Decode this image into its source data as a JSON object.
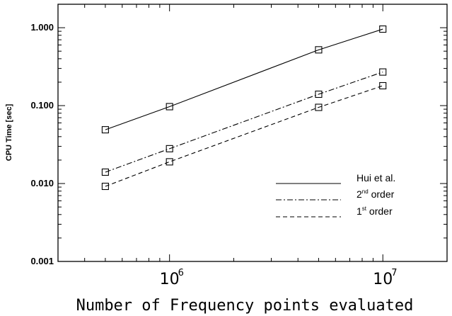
{
  "chart_data": {
    "type": "line",
    "xlabel": "Number of Frequency points evaluated",
    "ylabel": "CPU Time [sec]",
    "xscale": "log",
    "yscale": "log",
    "xlim": [
      300000,
      20000000
    ],
    "ylim": [
      0.001,
      2.0
    ],
    "yticks": [
      {
        "value": 0.001,
        "label": "0.001"
      },
      {
        "value": 0.01,
        "label": "0.010"
      },
      {
        "value": 0.1,
        "label": "0.100"
      },
      {
        "value": 1.0,
        "label": "1.000"
      }
    ],
    "xticks": [
      {
        "value": 1000000,
        "base": "10",
        "exp": "6"
      },
      {
        "value": 10000000,
        "base": "10",
        "exp": "7"
      }
    ],
    "x": [
      500000,
      1000000,
      5000000,
      10000000
    ],
    "series": [
      {
        "name": "Hui et al.",
        "label_main": "Hui et al.",
        "label_sup": "",
        "label_rest": "",
        "dash": "solid",
        "values": [
          0.049,
          0.097,
          0.52,
          0.96
        ]
      },
      {
        "name": "2nd order",
        "label_main": "2",
        "label_sup": "nd",
        "label_rest": " order",
        "dash": "dashdot",
        "values": [
          0.014,
          0.028,
          0.14,
          0.27
        ]
      },
      {
        "name": "1st order",
        "label_main": "1",
        "label_sup": "st",
        "label_rest": " order",
        "dash": "dashed",
        "values": [
          0.0092,
          0.019,
          0.095,
          0.18
        ]
      }
    ],
    "legend_position": "lower-right",
    "grid": false
  }
}
